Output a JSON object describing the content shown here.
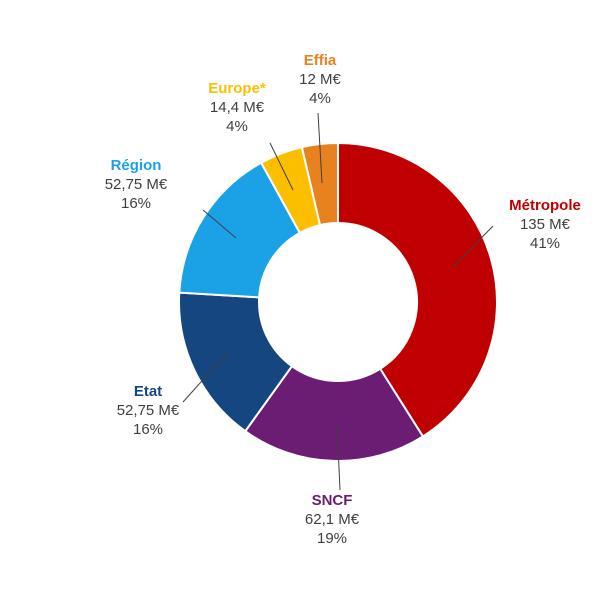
{
  "chart_data": {
    "type": "donut",
    "title": "",
    "slices": [
      {
        "name": "Métropole",
        "value": 135,
        "value_label": "135 M€",
        "percent_label": "41%",
        "color": "#c00000"
      },
      {
        "name": "SNCF",
        "value": 62.1,
        "value_label": "62,1 M€",
        "percent_label": "19%",
        "color": "#6a1d73"
      },
      {
        "name": "Etat",
        "value": 52.75,
        "value_label": "52,75 M€",
        "percent_label": "16%",
        "color": "#164680"
      },
      {
        "name": "Région",
        "value": 52.75,
        "value_label": "52,75 M€",
        "percent_label": "16%",
        "color": "#1ba1e6"
      },
      {
        "name": "Europe*",
        "value": 14.4,
        "value_label": "14,4 M€",
        "percent_label": "4%",
        "color": "#fbbf00"
      },
      {
        "name": "Effia",
        "value": 12,
        "value_label": "12 M€",
        "percent_label": "4%",
        "color": "#e8821e"
      }
    ]
  }
}
